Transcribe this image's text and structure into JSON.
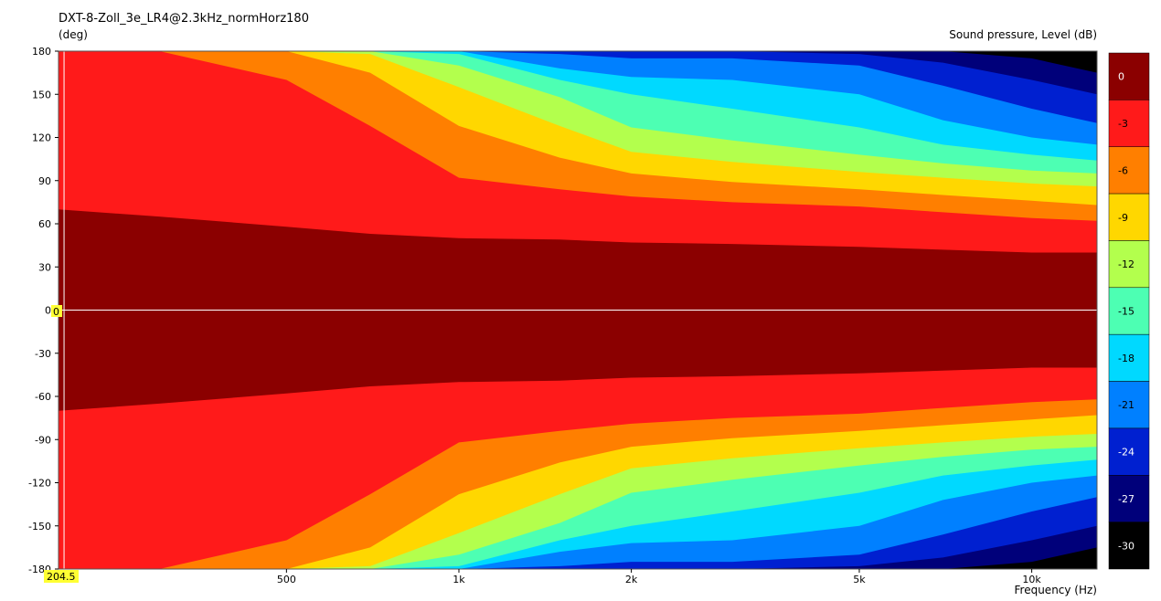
{
  "header": {
    "title": "DXT-8-Zoll_3e_LR4@2.3kHz_normHorz180",
    "y_unit": "(deg)",
    "colorbar_label": "Sound pressure, Level  (dB)",
    "x_label": "Frequency  (Hz)"
  },
  "cursor": {
    "y_value_label": "0",
    "x_value_label": "204.5"
  },
  "chart_data": {
    "type": "heatmap",
    "title": "DXT-8-Zoll_3e_LR4@2.3kHz_normHorz180",
    "xlabel": "Frequency  (Hz)",
    "ylabel": "(deg)",
    "colorbar_label": "Sound pressure, Level  (dB)",
    "x_scale": "log",
    "xlim": [
      200,
      13000
    ],
    "ylim": [
      -180,
      180
    ],
    "x_ticks": [
      500,
      1000,
      2000,
      5000,
      10000
    ],
    "x_tick_labels": [
      "500",
      "1k",
      "2k",
      "5k",
      "10k"
    ],
    "y_ticks": [
      180,
      150,
      120,
      90,
      60,
      30,
      0,
      -30,
      -60,
      -90,
      -120,
      -150,
      -180
    ],
    "y_tick_labels": [
      "180",
      "150",
      "120",
      "90",
      "60",
      "30",
      "0",
      "-30",
      "-60",
      "-90",
      "-120",
      "-150",
      "-180"
    ],
    "levels": [
      0,
      -3,
      -6,
      -9,
      -12,
      -15,
      -18,
      -21,
      -24,
      -27,
      -30
    ],
    "level_colors": [
      "#8b0000",
      "#ff1a1a",
      "#ff7f00",
      "#ffd700",
      "#b3ff4d",
      "#4dffb3",
      "#00d9ff",
      "#0080ff",
      "#0020d0",
      "#00007a",
      "#000000"
    ],
    "contour_angles_deg": {
      "frequencies_hz": [
        200,
        300,
        500,
        700,
        1000,
        1500,
        2000,
        3000,
        5000,
        7000,
        10000,
        13000
      ],
      "minus_3dB": [
        70,
        65,
        58,
        53,
        50,
        49,
        47,
        46,
        44,
        42,
        40,
        40
      ],
      "minus_6dB": [
        180,
        180,
        160,
        128,
        92,
        84,
        79,
        75,
        72,
        68,
        64,
        62
      ],
      "minus_9dB": [
        180,
        180,
        180,
        165,
        128,
        106,
        95,
        89,
        84,
        80,
        76,
        73
      ],
      "minus_12dB": [
        180,
        180,
        180,
        178,
        155,
        128,
        110,
        103,
        96,
        92,
        88,
        86
      ],
      "minus_15dB": [
        180,
        180,
        180,
        180,
        170,
        148,
        127,
        118,
        108,
        102,
        97,
        95
      ],
      "minus_18dB": [
        180,
        180,
        180,
        180,
        178,
        160,
        150,
        140,
        127,
        115,
        108,
        104
      ],
      "minus_21dB": [
        180,
        180,
        180,
        180,
        180,
        168,
        162,
        160,
        150,
        132,
        120,
        115
      ],
      "minus_24dB": [
        180,
        180,
        180,
        180,
        180,
        178,
        175,
        175,
        170,
        156,
        140,
        130
      ],
      "minus_27dB": [
        180,
        180,
        180,
        180,
        180,
        180,
        180,
        180,
        178,
        172,
        160,
        150
      ],
      "minus_30dB": [
        180,
        180,
        180,
        180,
        180,
        180,
        180,
        180,
        180,
        180,
        175,
        165
      ]
    },
    "cursor": {
      "frequency_hz": 204.5,
      "angle_deg": 0
    },
    "grid": false,
    "legend": "colorbar-right"
  }
}
